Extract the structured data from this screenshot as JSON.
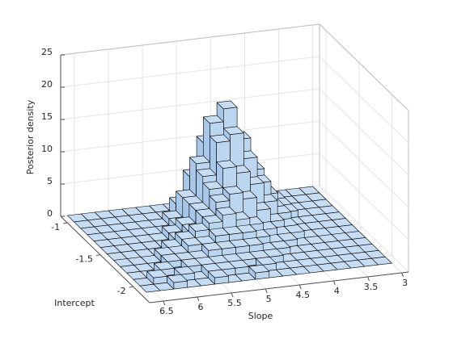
{
  "chart_data": {
    "type": "bar3",
    "xlabel": "Slope",
    "ylabel": "Intercept",
    "zlabel": "Posterior density",
    "color": "#c6ddf4",
    "xlim": [
      2.9,
      6.7
    ],
    "ylim": [
      -2.25,
      -0.9
    ],
    "zlim": [
      0,
      25
    ],
    "xticks": [
      3,
      3.5,
      4,
      4.5,
      5,
      5.5,
      6,
      6.5
    ],
    "yticks": [
      -1,
      -1.5,
      -2
    ],
    "zticks": [
      0,
      5,
      10,
      15,
      20,
      25
    ],
    "grid": true,
    "xbins": [
      3.0,
      3.2,
      3.4,
      3.6,
      3.8,
      4.0,
      4.2,
      4.4,
      4.6,
      4.8,
      5.0,
      5.2,
      5.4,
      5.6,
      5.8,
      6.0,
      6.2,
      6.4,
      6.6
    ],
    "ybins": [
      -0.9,
      -1.0,
      -1.1,
      -1.2,
      -1.3,
      -1.4,
      -1.5,
      -1.6,
      -1.7,
      -1.8,
      -1.9,
      -2.0,
      -2.1
    ],
    "values": [
      [
        0,
        0,
        0,
        0,
        0,
        1,
        2,
        3,
        2,
        1,
        0,
        0,
        0,
        0,
        0,
        0,
        0,
        0
      ],
      [
        0,
        0,
        0,
        1,
        2,
        5,
        9,
        13,
        11,
        6,
        2,
        0,
        0,
        0,
        0,
        0,
        0,
        0
      ],
      [
        0,
        0,
        0,
        1,
        3,
        7,
        12,
        17,
        15,
        9,
        4,
        1,
        0,
        0,
        0,
        0,
        0,
        0
      ],
      [
        0,
        0,
        0,
        1,
        2,
        6,
        10,
        14,
        13,
        8,
        4,
        1,
        0,
        0,
        0,
        0,
        0,
        0
      ],
      [
        0,
        0,
        0,
        0,
        2,
        4,
        7,
        9,
        10,
        7,
        4,
        2,
        1,
        0,
        0,
        0,
        0,
        0
      ],
      [
        0,
        0,
        0,
        0,
        1,
        2,
        4,
        6,
        7,
        6,
        4,
        2,
        1,
        0,
        0,
        0,
        0,
        0
      ],
      [
        0,
        0,
        0,
        0,
        1,
        1,
        2,
        3,
        4,
        5,
        4,
        3,
        2,
        1,
        0,
        0,
        0,
        0
      ],
      [
        0,
        0,
        0,
        0,
        0,
        1,
        1,
        2,
        3,
        3,
        3,
        2,
        2,
        1,
        1,
        0,
        0,
        0
      ],
      [
        0,
        0,
        0,
        0,
        0,
        0,
        1,
        1,
        2,
        2,
        2,
        2,
        1,
        1,
        1,
        0,
        0,
        0
      ],
      [
        0,
        0,
        0,
        0,
        0,
        0,
        0,
        1,
        1,
        1,
        1,
        1,
        1,
        1,
        0,
        1,
        0,
        0
      ],
      [
        0,
        0,
        0,
        0,
        0,
        0,
        0,
        0,
        1,
        0,
        1,
        1,
        1,
        0,
        1,
        0,
        1,
        0
      ],
      [
        0,
        0,
        0,
        0,
        0,
        0,
        0,
        0,
        0,
        1,
        0,
        0,
        1,
        0,
        0,
        1,
        0,
        0
      ]
    ]
  }
}
